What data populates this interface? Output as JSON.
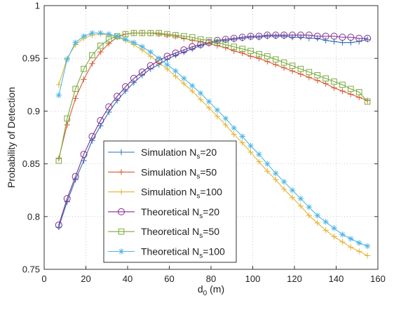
{
  "chart_data": {
    "type": "line",
    "title": "",
    "xlabel": {
      "main": "d",
      "sub": "0",
      "tail": " (m)"
    },
    "ylabel": "Probability of Detection",
    "xlim": [
      0,
      160
    ],
    "ylim": [
      0.75,
      1.0
    ],
    "x_ticks": [
      0,
      20,
      40,
      60,
      80,
      100,
      120,
      140,
      160
    ],
    "y_ticks": [
      0.75,
      0.8,
      0.85,
      0.9,
      0.95,
      1.0
    ],
    "x_tick_labels": [
      "0",
      "20",
      "40",
      "60",
      "80",
      "100",
      "120",
      "140",
      "160"
    ],
    "y_tick_labels": [
      "0.75",
      "0.8",
      "0.85",
      "0.9",
      "0.95",
      "1"
    ],
    "grid": "dotted",
    "legend_placement": "lower-left",
    "x": [
      7,
      11,
      15,
      19,
      23,
      27,
      31,
      35,
      39,
      43,
      47,
      51,
      55,
      59,
      63,
      67,
      71,
      75,
      79,
      83,
      87,
      91,
      95,
      99,
      103,
      107,
      111,
      115,
      119,
      123,
      127,
      131,
      135,
      139,
      143,
      147,
      151,
      155
    ],
    "series": [
      {
        "name": "Simulation N",
        "sub": "s",
        "tail": "=20",
        "color": "#2f6fb5",
        "marker": "plus",
        "values": [
          0.79,
          0.814,
          0.835,
          0.853,
          0.872,
          0.886,
          0.899,
          0.91,
          0.919,
          0.927,
          0.934,
          0.94,
          0.944,
          0.949,
          0.953,
          0.956,
          0.959,
          0.962,
          0.964,
          0.966,
          0.967,
          0.968,
          0.969,
          0.97,
          0.97,
          0.971,
          0.971,
          0.971,
          0.97,
          0.97,
          0.969,
          0.969,
          0.967,
          0.966,
          0.965,
          0.965,
          0.966,
          0.968
        ]
      },
      {
        "name": "Simulation N",
        "sub": "s",
        "tail": "=50",
        "color": "#d65a33",
        "marker": "plus",
        "values": [
          0.855,
          0.887,
          0.912,
          0.93,
          0.945,
          0.956,
          0.964,
          0.97,
          0.973,
          0.974,
          0.974,
          0.974,
          0.973,
          0.972,
          0.971,
          0.969,
          0.967,
          0.966,
          0.964,
          0.962,
          0.96,
          0.957,
          0.955,
          0.952,
          0.95,
          0.947,
          0.944,
          0.941,
          0.938,
          0.935,
          0.932,
          0.929,
          0.926,
          0.922,
          0.919,
          0.916,
          0.913,
          0.91
        ]
      },
      {
        "name": "Simulation N",
        "sub": "s",
        "tail": "=100",
        "color": "#e6b332",
        "marker": "plus",
        "values": [
          0.925,
          0.95,
          0.963,
          0.969,
          0.972,
          0.973,
          0.972,
          0.97,
          0.967,
          0.963,
          0.958,
          0.952,
          0.946,
          0.94,
          0.933,
          0.926,
          0.919,
          0.911,
          0.903,
          0.895,
          0.887,
          0.878,
          0.87,
          0.861,
          0.852,
          0.843,
          0.835,
          0.826,
          0.818,
          0.81,
          0.801,
          0.794,
          0.787,
          0.781,
          0.776,
          0.771,
          0.767,
          0.763
        ]
      },
      {
        "name": "Theoretical N",
        "sub": "s",
        "tail": "=20",
        "color": "#7d2f8e",
        "marker": "circle",
        "values": [
          0.792,
          0.817,
          0.838,
          0.859,
          0.876,
          0.891,
          0.904,
          0.914,
          0.923,
          0.931,
          0.937,
          0.943,
          0.948,
          0.952,
          0.955,
          0.958,
          0.961,
          0.963,
          0.965,
          0.967,
          0.968,
          0.969,
          0.97,
          0.971,
          0.971,
          0.972,
          0.972,
          0.972,
          0.972,
          0.972,
          0.972,
          0.971,
          0.971,
          0.971,
          0.97,
          0.97,
          0.969,
          0.969
        ]
      },
      {
        "name": "Theoretical N",
        "sub": "s",
        "tail": "=50",
        "color": "#7aab3e",
        "marker": "square",
        "values": [
          0.853,
          0.893,
          0.921,
          0.94,
          0.953,
          0.962,
          0.968,
          0.971,
          0.973,
          0.974,
          0.974,
          0.974,
          0.974,
          0.973,
          0.972,
          0.971,
          0.97,
          0.968,
          0.967,
          0.965,
          0.963,
          0.961,
          0.959,
          0.957,
          0.954,
          0.952,
          0.949,
          0.946,
          0.943,
          0.94,
          0.937,
          0.934,
          0.931,
          0.928,
          0.925,
          0.921,
          0.918,
          0.909
        ]
      },
      {
        "name": "Theoretical N",
        "sub": "s",
        "tail": "=100",
        "color": "#4fb7e3",
        "marker": "asterisk",
        "values": [
          0.915,
          0.949,
          0.965,
          0.971,
          0.974,
          0.974,
          0.973,
          0.971,
          0.968,
          0.965,
          0.961,
          0.956,
          0.95,
          0.944,
          0.938,
          0.931,
          0.924,
          0.917,
          0.909,
          0.901,
          0.893,
          0.884,
          0.876,
          0.867,
          0.859,
          0.85,
          0.841,
          0.833,
          0.825,
          0.817,
          0.809,
          0.801,
          0.795,
          0.789,
          0.783,
          0.779,
          0.775,
          0.772
        ]
      }
    ]
  }
}
